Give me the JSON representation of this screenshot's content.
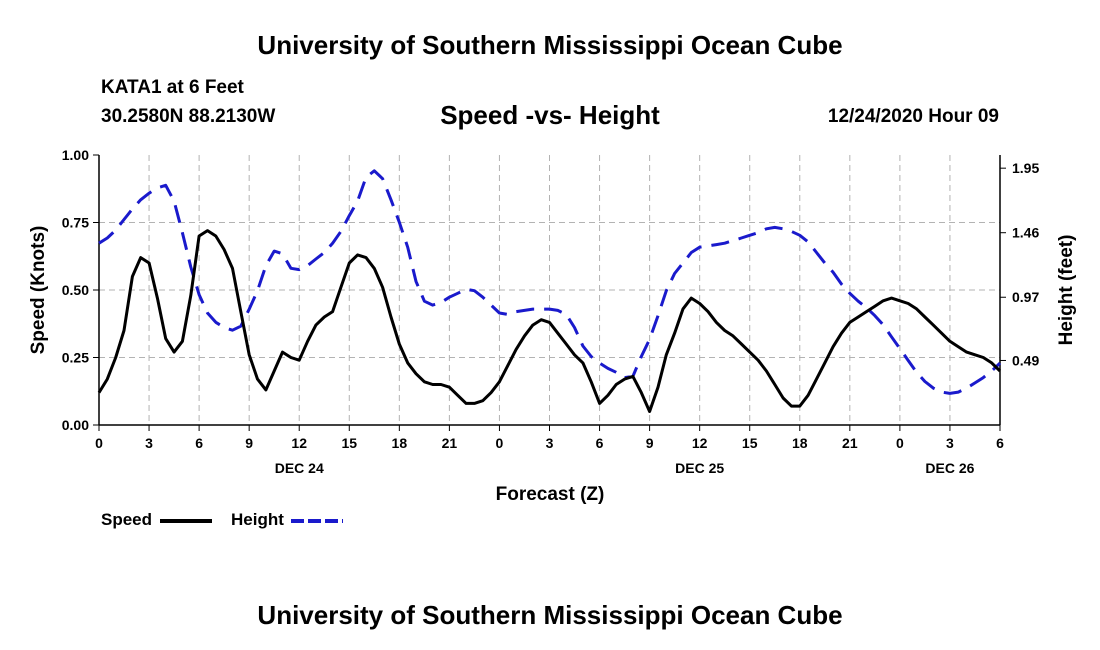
{
  "header": {
    "title": "University of Southern Mississippi Ocean Cube",
    "station": "KATA1 at 6 Feet",
    "coordinates": "30.2580N 88.2130W",
    "subtitle": "Speed -vs- Height",
    "datetime": "12/24/2020 Hour 09"
  },
  "footer": {
    "title": "University of Southern Mississippi Ocean Cube"
  },
  "legend": {
    "speed_label": "Speed",
    "height_label": "Height"
  },
  "colors": {
    "speed": "#000000",
    "height": "#1a1acc",
    "grid": "#b3b3b3"
  },
  "chart_data": {
    "type": "line",
    "title": "Speed -vs- Height",
    "xlabel": "Forecast (Z)",
    "ylabel_left": "Speed (Knots)",
    "ylabel_right": "Height (feet)",
    "x_range_hours": [
      0,
      54
    ],
    "x_ticks": [
      {
        "h": 0,
        "label": "0"
      },
      {
        "h": 3,
        "label": "3"
      },
      {
        "h": 6,
        "label": "6"
      },
      {
        "h": 9,
        "label": "9"
      },
      {
        "h": 12,
        "label": "12"
      },
      {
        "h": 15,
        "label": "15"
      },
      {
        "h": 18,
        "label": "18"
      },
      {
        "h": 21,
        "label": "21"
      },
      {
        "h": 24,
        "label": "0"
      },
      {
        "h": 27,
        "label": "3"
      },
      {
        "h": 30,
        "label": "6"
      },
      {
        "h": 33,
        "label": "9"
      },
      {
        "h": 36,
        "label": "12"
      },
      {
        "h": 39,
        "label": "15"
      },
      {
        "h": 42,
        "label": "18"
      },
      {
        "h": 45,
        "label": "21"
      },
      {
        "h": 48,
        "label": "0"
      },
      {
        "h": 51,
        "label": "3"
      },
      {
        "h": 54,
        "label": "6"
      }
    ],
    "date_labels": [
      {
        "h": 12,
        "label": "DEC 24"
      },
      {
        "h": 36,
        "label": "DEC 25"
      },
      {
        "h": 51,
        "label": "DEC 26"
      }
    ],
    "y_left": {
      "range": [
        0,
        1.0
      ],
      "ticks": [
        "0.00",
        "0.25",
        "0.50",
        "0.75",
        "1.00"
      ]
    },
    "y_right": {
      "range": [
        0,
        2.05
      ],
      "ticks": [
        "0.49",
        "0.97",
        "1.46",
        "1.95"
      ]
    },
    "series": [
      {
        "name": "Speed",
        "axis": "left",
        "style": "solid",
        "x": [
          0,
          0.5,
          1,
          1.5,
          2,
          2.5,
          3,
          3.5,
          4,
          4.5,
          5,
          5.5,
          6,
          6.5,
          7,
          7.5,
          8,
          8.5,
          9,
          9.5,
          10,
          10.5,
          11,
          11.5,
          12,
          12.5,
          13,
          13.5,
          14,
          14.5,
          15,
          15.5,
          16,
          16.5,
          17,
          17.5,
          18,
          18.5,
          19,
          19.5,
          20,
          20.5,
          21,
          21.5,
          22,
          22.5,
          23,
          23.5,
          24,
          24.5,
          25,
          25.5,
          26,
          26.5,
          27,
          27.5,
          28,
          28.5,
          29,
          29.5,
          30,
          30.5,
          31,
          31.5,
          32,
          32.5,
          33,
          33.5,
          34,
          34.5,
          35,
          35.5,
          36,
          36.5,
          37,
          37.5,
          38,
          38.5,
          39,
          39.5,
          40,
          40.5,
          41,
          41.5,
          42,
          42.5,
          43,
          43.5,
          44,
          44.5,
          45,
          45.5,
          46,
          46.5,
          47,
          47.5,
          48,
          48.5,
          49,
          49.5,
          50,
          50.5,
          51,
          51.5,
          52,
          52.5,
          53,
          53.5,
          54
        ],
        "values": [
          0.12,
          0.17,
          0.25,
          0.35,
          0.55,
          0.62,
          0.6,
          0.47,
          0.32,
          0.27,
          0.31,
          0.48,
          0.7,
          0.72,
          0.7,
          0.65,
          0.58,
          0.42,
          0.26,
          0.17,
          0.13,
          0.2,
          0.27,
          0.25,
          0.24,
          0.31,
          0.37,
          0.4,
          0.42,
          0.51,
          0.6,
          0.63,
          0.62,
          0.58,
          0.51,
          0.4,
          0.3,
          0.23,
          0.19,
          0.16,
          0.15,
          0.15,
          0.14,
          0.11,
          0.08,
          0.08,
          0.09,
          0.12,
          0.16,
          0.22,
          0.28,
          0.33,
          0.37,
          0.39,
          0.38,
          0.34,
          0.3,
          0.26,
          0.23,
          0.16,
          0.08,
          0.11,
          0.15,
          0.17,
          0.18,
          0.12,
          0.05,
          0.14,
          0.26,
          0.34,
          0.43,
          0.47,
          0.45,
          0.42,
          0.38,
          0.35,
          0.33,
          0.3,
          0.27,
          0.24,
          0.2,
          0.15,
          0.1,
          0.07,
          0.07,
          0.11,
          0.17,
          0.23,
          0.29,
          0.34,
          0.38,
          0.4,
          0.42,
          0.44,
          0.46,
          0.47,
          0.46,
          0.45,
          0.43,
          0.4,
          0.37,
          0.34,
          0.31,
          0.29,
          0.27,
          0.26,
          0.25,
          0.23,
          0.2
        ]
      },
      {
        "name": "Height",
        "axis": "right",
        "style": "dashed",
        "x": [
          0,
          0.5,
          1,
          1.5,
          2,
          2.5,
          3,
          3.5,
          4,
          4.5,
          5,
          5.5,
          6,
          6.5,
          7,
          7.5,
          8,
          8.5,
          9,
          9.5,
          10,
          10.5,
          11,
          11.5,
          12,
          12.5,
          13,
          13.5,
          14,
          14.5,
          15,
          15.5,
          16,
          16.5,
          17,
          17.5,
          18,
          18.5,
          19,
          19.5,
          20,
          20.5,
          21,
          21.5,
          22,
          22.5,
          23,
          23.5,
          24,
          24.5,
          25,
          25.5,
          26,
          26.5,
          27,
          27.5,
          28,
          28.5,
          29,
          29.5,
          30,
          30.5,
          31,
          31.5,
          32,
          32.5,
          33,
          33.5,
          34,
          34.5,
          35,
          35.5,
          36,
          36.5,
          37,
          37.5,
          38,
          38.5,
          39,
          39.5,
          40,
          40.5,
          41,
          41.5,
          42,
          42.5,
          43,
          43.5,
          44,
          44.5,
          45,
          45.5,
          46,
          46.5,
          47,
          47.5,
          48,
          48.5,
          49,
          49.5,
          50,
          50.5,
          51,
          51.5,
          52,
          52.5,
          53,
          53.5,
          54
        ],
        "values": [
          1.38,
          1.42,
          1.48,
          1.56,
          1.64,
          1.71,
          1.76,
          1.8,
          1.82,
          1.7,
          1.46,
          1.2,
          0.99,
          0.85,
          0.78,
          0.74,
          0.72,
          0.75,
          0.88,
          1.02,
          1.21,
          1.32,
          1.3,
          1.19,
          1.18,
          1.21,
          1.26,
          1.31,
          1.38,
          1.47,
          1.59,
          1.7,
          1.88,
          1.93,
          1.87,
          1.71,
          1.54,
          1.35,
          1.09,
          0.94,
          0.91,
          0.93,
          0.97,
          1.0,
          1.03,
          1.02,
          0.97,
          0.91,
          0.85,
          0.84,
          0.86,
          0.87,
          0.88,
          0.88,
          0.88,
          0.87,
          0.84,
          0.74,
          0.6,
          0.52,
          0.47,
          0.43,
          0.4,
          0.36,
          0.37,
          0.52,
          0.65,
          0.83,
          1.02,
          1.15,
          1.23,
          1.31,
          1.35,
          1.36,
          1.37,
          1.38,
          1.4,
          1.42,
          1.44,
          1.46,
          1.49,
          1.5,
          1.49,
          1.47,
          1.44,
          1.39,
          1.31,
          1.23,
          1.16,
          1.07,
          1.0,
          0.94,
          0.89,
          0.83,
          0.76,
          0.67,
          0.58,
          0.49,
          0.4,
          0.33,
          0.28,
          0.25,
          0.24,
          0.25,
          0.28,
          0.32,
          0.36,
          0.41,
          0.47
        ]
      }
    ]
  }
}
